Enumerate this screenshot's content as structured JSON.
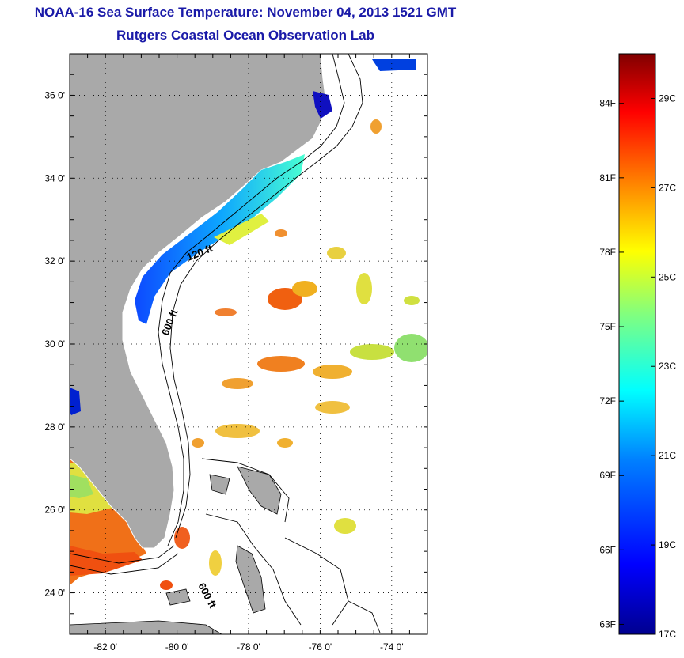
{
  "header": {
    "title": "NOAA-16 Sea Surface Temperature:  November 04, 2013 1521 GMT",
    "subtitle": "Rutgers Coastal Ocean Observation Lab"
  },
  "map": {
    "lon_range": [
      -83,
      -73
    ],
    "lat_range": [
      23,
      37
    ],
    "lon_ticks": [
      {
        "lon": -82,
        "label": "-82 0'"
      },
      {
        "lon": -80,
        "label": "-80 0'"
      },
      {
        "lon": -78,
        "label": "-78 0'"
      },
      {
        "lon": -76,
        "label": "-76 0'"
      },
      {
        "lon": -74,
        "label": "-74 0'"
      }
    ],
    "lat_ticks": [
      {
        "lat": 24,
        "label": "24 0'"
      },
      {
        "lat": 26,
        "label": "26 0'"
      },
      {
        "lat": 28,
        "label": "28 0'"
      },
      {
        "lat": 30,
        "label": "30 0'"
      },
      {
        "lat": 32,
        "label": "32 0'"
      },
      {
        "lat": 34,
        "label": "34 0'"
      },
      {
        "lat": 36,
        "label": "36 0'"
      }
    ],
    "contour_labels": [
      "120 ft",
      "600 ft",
      "600 ft"
    ],
    "land_color": "#a9a9a9",
    "ocean_color": "#ffffff"
  },
  "colorbar": {
    "min_c": 17,
    "max_c": 30,
    "celsius_ticks": [
      {
        "value": 17,
        "label": "17C"
      },
      {
        "value": 19,
        "label": "19C"
      },
      {
        "value": 21,
        "label": "21C"
      },
      {
        "value": 23,
        "label": "23C"
      },
      {
        "value": 25,
        "label": "25C"
      },
      {
        "value": 27,
        "label": "27C"
      },
      {
        "value": 29,
        "label": "29C"
      }
    ],
    "fahrenheit_ticks": [
      {
        "value": 63,
        "label": "63F"
      },
      {
        "value": 66,
        "label": "66F"
      },
      {
        "value": 69,
        "label": "69F"
      },
      {
        "value": 72,
        "label": "72F"
      },
      {
        "value": 75,
        "label": "75F"
      },
      {
        "value": 78,
        "label": "78F"
      },
      {
        "value": 81,
        "label": "81F"
      },
      {
        "value": 84,
        "label": "84F"
      }
    ],
    "colors": [
      "#00008f",
      "#0000ff",
      "#0080ff",
      "#00ffff",
      "#80ff80",
      "#ffff00",
      "#ff8000",
      "#ff0000",
      "#800000"
    ]
  }
}
